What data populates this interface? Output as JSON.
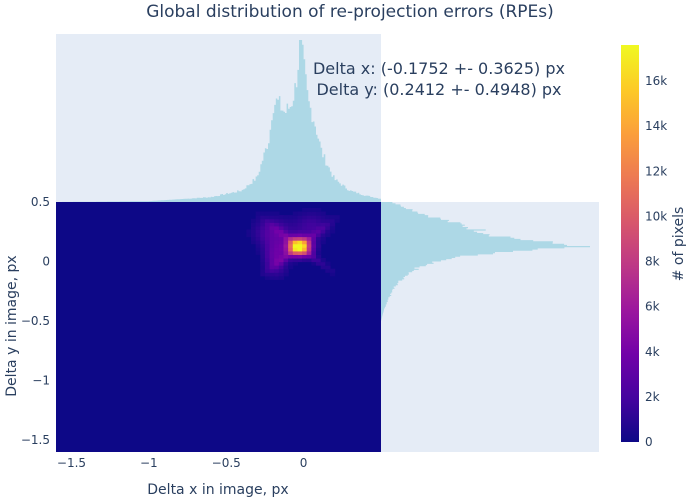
{
  "chart_data": {
    "type": "heatmap",
    "title": "Global distribution of re-projection errors (RPEs)",
    "xlabel": "Delta x in image, px",
    "ylabel": "Delta y in image, px",
    "xlim": [
      -1.6,
      0.5
    ],
    "ylim": [
      -1.6,
      0.5
    ],
    "x_ticks": [
      -1.5,
      -1,
      -0.5,
      0
    ],
    "x_tick_labels": [
      "−1.5",
      "−1",
      "−0.5",
      "0"
    ],
    "y_ticks": [
      0.5,
      0,
      -0.5,
      -1,
      -1.5
    ],
    "y_tick_labels": [
      "0.5",
      "0",
      "−0.5",
      "−1",
      "−1.5"
    ],
    "colorbar": {
      "title": "# of pixels",
      "range": [
        0,
        17600
      ],
      "ticks": [
        0,
        2000,
        4000,
        6000,
        8000,
        10000,
        12000,
        14000,
        16000
      ],
      "tick_labels": [
        "0",
        "2k",
        "4k",
        "6k",
        "8k",
        "10k",
        "12k",
        "14k",
        "16k"
      ],
      "colorscale": [
        "#0d0887",
        "#46039f",
        "#7201a8",
        "#9c179e",
        "#bd3786",
        "#d8576b",
        "#ed7953",
        "#fb9f3a",
        "#fdca26",
        "#f0f921"
      ]
    },
    "annotations": [
      "Delta x: (-0.1752 +- 0.3625) px",
      "Delta y: (0.2412 +- 0.4948) px"
    ],
    "hotspots": [
      {
        "x": -0.03,
        "y": 0.13,
        "count": 17500
      },
      {
        "x": -0.18,
        "y": 0.05,
        "count": 3500
      },
      {
        "x": -0.2,
        "y": 0.25,
        "count": 2500
      },
      {
        "x": 0.05,
        "y": 0.3,
        "count": 1800
      }
    ],
    "marginal_x": {
      "type": "histogram",
      "color": "#add8e6",
      "peak_x": -0.02,
      "profile": [
        {
          "x": -1.6,
          "rel": 0.0
        },
        {
          "x": -1.0,
          "rel": 0.005
        },
        {
          "x": -0.6,
          "rel": 0.03
        },
        {
          "x": -0.4,
          "rel": 0.07
        },
        {
          "x": -0.3,
          "rel": 0.15
        },
        {
          "x": -0.22,
          "rel": 0.4
        },
        {
          "x": -0.2,
          "rel": 0.6
        },
        {
          "x": -0.17,
          "rel": 0.62
        },
        {
          "x": -0.12,
          "rel": 0.55
        },
        {
          "x": -0.08,
          "rel": 0.6
        },
        {
          "x": -0.05,
          "rel": 0.72
        },
        {
          "x": -0.03,
          "rel": 0.9
        },
        {
          "x": -0.02,
          "rel": 1.0
        },
        {
          "x": 0.0,
          "rel": 0.85
        },
        {
          "x": 0.03,
          "rel": 0.62
        },
        {
          "x": 0.07,
          "rel": 0.5
        },
        {
          "x": 0.12,
          "rel": 0.3
        },
        {
          "x": 0.2,
          "rel": 0.14
        },
        {
          "x": 0.3,
          "rel": 0.07
        },
        {
          "x": 0.4,
          "rel": 0.04
        },
        {
          "x": 0.5,
          "rel": 0.02
        }
      ]
    },
    "marginal_y": {
      "type": "histogram",
      "color": "#add8e6",
      "peak_y": 0.13,
      "profile": [
        {
          "y": 0.5,
          "rel": 0.05
        },
        {
          "y": 0.4,
          "rel": 0.2
        },
        {
          "y": 0.3,
          "rel": 0.4
        },
        {
          "y": 0.22,
          "rel": 0.55
        },
        {
          "y": 0.16,
          "rel": 0.78
        },
        {
          "y": 0.13,
          "rel": 1.0
        },
        {
          "y": 0.1,
          "rel": 0.7
        },
        {
          "y": 0.05,
          "rel": 0.4
        },
        {
          "y": 0.0,
          "rel": 0.25
        },
        {
          "y": -0.05,
          "rel": 0.18
        },
        {
          "y": -0.1,
          "rel": 0.13
        },
        {
          "y": -0.2,
          "rel": 0.07
        },
        {
          "y": -0.3,
          "rel": 0.04
        },
        {
          "y": -0.4,
          "rel": 0.015
        },
        {
          "y": -0.5,
          "rel": 0.0
        }
      ]
    }
  }
}
